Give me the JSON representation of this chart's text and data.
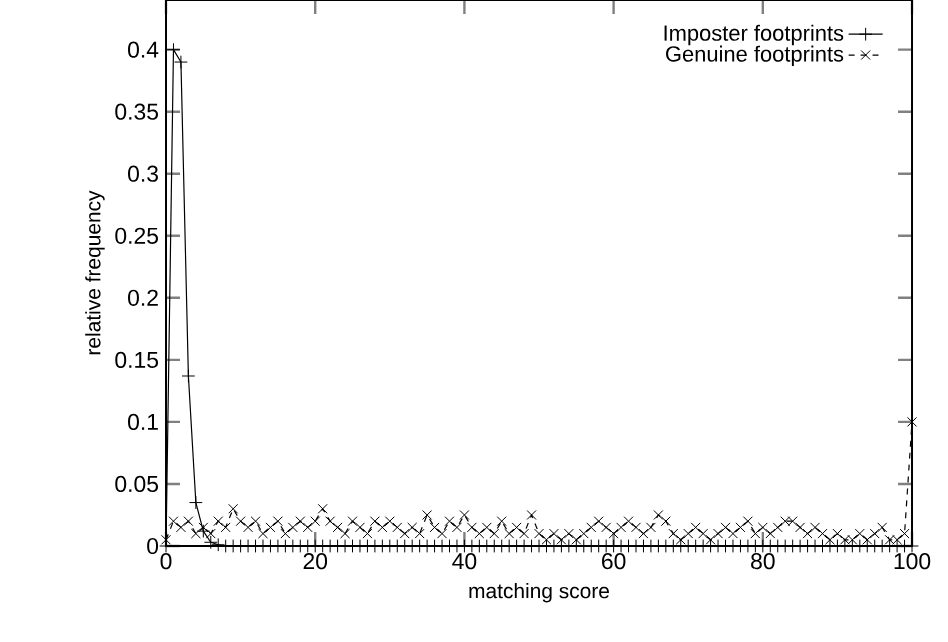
{
  "chart_data": {
    "type": "line",
    "xlabel": "matching score",
    "ylabel": "relative frequency",
    "xlim": [
      0,
      100
    ],
    "ylim": [
      0,
      0.44
    ],
    "xticks": [
      0,
      20,
      40,
      60,
      80,
      100
    ],
    "yticks": [
      0,
      0.05,
      0.1,
      0.15,
      0.2,
      0.25,
      0.3,
      0.35,
      0.4
    ],
    "legend": "top right",
    "grid": false,
    "series": [
      {
        "name": "Imposter footprints",
        "color": "#000000",
        "marker": "cross",
        "line_style": "solid",
        "x": [
          0,
          1,
          2,
          3,
          4,
          5,
          6,
          7,
          8,
          9,
          10,
          11,
          12,
          13,
          14,
          15,
          16,
          17,
          18,
          19,
          20,
          21,
          22,
          23,
          24,
          25,
          26,
          27,
          28,
          29,
          30,
          31,
          32,
          33,
          34,
          35,
          36,
          37,
          38,
          39,
          40,
          41,
          42,
          43,
          44,
          45,
          46,
          47,
          48,
          49,
          50,
          51,
          52,
          53,
          54,
          55,
          56,
          57,
          58,
          59,
          60,
          61,
          62,
          63,
          64,
          65,
          66,
          67,
          68,
          69,
          70,
          71,
          72,
          73,
          74,
          75,
          76,
          77,
          78,
          79,
          80,
          81,
          82,
          83,
          84,
          85,
          86,
          87,
          88,
          89,
          90,
          91,
          92,
          93,
          94,
          95,
          96,
          97,
          98,
          99,
          100
        ],
        "values": [
          0,
          0.4,
          0.39,
          0.137,
          0.035,
          0.012,
          0.003,
          0.001,
          0,
          0,
          0,
          0,
          0,
          0,
          0,
          0,
          0,
          0,
          0,
          0,
          0,
          0,
          0,
          0,
          0,
          0,
          0,
          0,
          0,
          0,
          0,
          0,
          0,
          0,
          0,
          0,
          0,
          0,
          0,
          0,
          0,
          0,
          0,
          0,
          0,
          0,
          0,
          0,
          0,
          0,
          0,
          0,
          0,
          0,
          0,
          0,
          0,
          0,
          0,
          0,
          0,
          0,
          0,
          0,
          0,
          0,
          0,
          0,
          0,
          0,
          0,
          0,
          0,
          0,
          0,
          0,
          0,
          0,
          0,
          0,
          0,
          0,
          0,
          0,
          0,
          0,
          0,
          0,
          0,
          0,
          0,
          0,
          0,
          0,
          0,
          0,
          0,
          0,
          0,
          0,
          0
        ]
      },
      {
        "name": "Genuine footprints",
        "color": "#000000",
        "marker": "cross",
        "line_style": "dashed",
        "x": [
          0,
          1,
          2,
          3,
          4,
          5,
          6,
          7,
          8,
          9,
          10,
          11,
          12,
          13,
          14,
          15,
          16,
          17,
          18,
          19,
          20,
          21,
          22,
          23,
          24,
          25,
          26,
          27,
          28,
          29,
          30,
          31,
          32,
          33,
          34,
          35,
          36,
          37,
          38,
          39,
          40,
          41,
          42,
          43,
          44,
          45,
          46,
          47,
          48,
          49,
          50,
          51,
          52,
          53,
          54,
          55,
          56,
          57,
          58,
          59,
          60,
          61,
          62,
          63,
          64,
          65,
          66,
          67,
          68,
          69,
          70,
          71,
          72,
          73,
          74,
          75,
          76,
          77,
          78,
          79,
          80,
          81,
          82,
          83,
          84,
          85,
          86,
          87,
          88,
          89,
          90,
          91,
          92,
          93,
          94,
          95,
          96,
          97,
          98,
          99,
          100
        ],
        "values": [
          0.005,
          0.02,
          0.015,
          0.02,
          0.01,
          0.015,
          0.01,
          0.02,
          0.015,
          0.03,
          0.02,
          0.015,
          0.02,
          0.01,
          0.015,
          0.02,
          0.01,
          0.015,
          0.02,
          0.015,
          0.02,
          0.03,
          0.02,
          0.015,
          0.01,
          0.02,
          0.015,
          0.01,
          0.02,
          0.015,
          0.02,
          0.015,
          0.01,
          0.015,
          0.01,
          0.025,
          0.015,
          0.01,
          0.02,
          0.015,
          0.025,
          0.015,
          0.01,
          0.015,
          0.01,
          0.02,
          0.01,
          0.015,
          0.01,
          0.025,
          0.01,
          0.005,
          0.01,
          0.005,
          0.01,
          0.005,
          0.01,
          0.015,
          0.02,
          0.015,
          0.01,
          0.015,
          0.02,
          0.015,
          0.01,
          0.015,
          0.025,
          0.02,
          0.01,
          0.005,
          0.01,
          0.015,
          0.01,
          0.005,
          0.01,
          0.015,
          0.01,
          0.015,
          0.02,
          0.01,
          0.015,
          0.01,
          0.015,
          0.02,
          0.02,
          0.015,
          0.01,
          0.015,
          0.01,
          0.005,
          0.01,
          0.005,
          0.005,
          0.01,
          0.005,
          0.01,
          0.015,
          0.005,
          0.005,
          0.01,
          0.1
        ]
      }
    ]
  }
}
